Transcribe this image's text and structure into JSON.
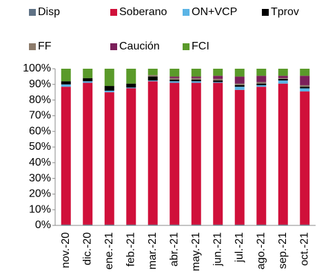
{
  "chart_data": {
    "type": "stacked_bar",
    "categories": [
      "nov.-20",
      "dic.-20",
      "ene.-21",
      "feb.-21",
      "mar.-21",
      "abr.-21",
      "may.-21",
      "jun.-21",
      "jul.-21",
      "ago.-21",
      "sep.-21",
      "oct.-21"
    ],
    "series": [
      {
        "name": "Disp",
        "color": "#5f7285",
        "values": [
          0.5,
          0.5,
          0.5,
          0.5,
          0.5,
          0.5,
          0.5,
          0.5,
          0.5,
          0.5,
          0.5,
          0.5
        ]
      },
      {
        "name": "Soberano",
        "color": "#d0103a",
        "values": [
          88,
          90.5,
          84.5,
          87,
          91.5,
          90.5,
          90.5,
          90.5,
          86,
          88,
          90,
          85
        ]
      },
      {
        "name": "ON+VCP",
        "color": "#5bb4e5",
        "values": [
          1.5,
          1,
          1,
          0.5,
          0.5,
          1,
          1,
          0.5,
          2,
          1,
          2,
          2
        ]
      },
      {
        "name": "Tprov",
        "color": "#000000",
        "values": [
          2,
          2,
          3,
          2.5,
          2.5,
          1,
          1,
          1,
          1,
          1,
          1,
          1
        ]
      },
      {
        "name": "FF",
        "color": "#8c7b6b",
        "values": [
          0,
          0,
          0,
          0,
          1,
          1,
          1,
          1,
          1,
          1,
          0.5,
          1
        ]
      },
      {
        "name": "Caución",
        "color": "#7b1f5a",
        "values": [
          0,
          0,
          0,
          0,
          0,
          1,
          1,
          2,
          4.5,
          4,
          1.5,
          6
        ]
      },
      {
        "name": "FCI",
        "color": "#5a9a2a",
        "values": [
          8,
          6,
          11,
          9.5,
          4,
          5,
          5,
          4.5,
          5,
          4.5,
          4.5,
          4.5
        ]
      }
    ],
    "ylim": [
      0,
      100
    ],
    "yticks": [
      {
        "value": 0,
        "label": "0%"
      },
      {
        "value": 10,
        "label": "10%"
      },
      {
        "value": 20,
        "label": "20%"
      },
      {
        "value": 30,
        "label": "30%"
      },
      {
        "value": 40,
        "label": "40%"
      },
      {
        "value": 50,
        "label": "50%"
      },
      {
        "value": 60,
        "label": "60%"
      },
      {
        "value": 70,
        "label": "70%"
      },
      {
        "value": 80,
        "label": "80%"
      },
      {
        "value": 90,
        "label": "90%"
      },
      {
        "value": 100,
        "label": "100%"
      }
    ],
    "legend": "top"
  }
}
